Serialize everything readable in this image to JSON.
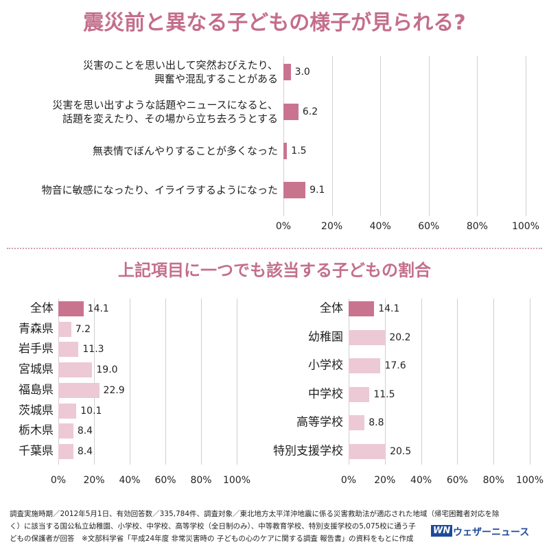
{
  "header": {
    "title": "震災前と異なる子どもの様子が見られる?"
  },
  "section_title": "上記項目に一つでも該当する子どもの割合",
  "footer": {
    "lines": [
      "調査実施時期／2012年5月1日、有効回答数／335,784件、調査対象／東北地方太平洋沖地震に係る災害救助法が適応された地域（帰宅困難者対応を除",
      "く）に該当する国公私立幼稚園、小学校、中学校、高等学校（全日制のみ）、中等教育学校、特別支援学校の5,075校に通う子",
      "どもの保護者が回答　※文部科学省「平成24年度 非常災害時の 子どもの心のケアに関する調査 報告書」の資料をもとに作成"
    ],
    "logo": "WN",
    "brand": "ウェザーニュース"
  },
  "chart_data": [
    {
      "type": "bar",
      "orientation": "horizontal",
      "categories": [
        "災害のことを思い出して突然おびえたり、\n興奮や混乱することがある",
        "災害を思い出すような話題やニュースになると、\n話題を変えたり、その場から立ち去ろうとする",
        "無表情でぼんやりすることが多くなった",
        "物音に敏感になったり、イライラするようになった"
      ],
      "values": [
        3.0,
        6.2,
        1.5,
        9.1
      ],
      "value_labels": [
        "3.0",
        "6.2",
        "1.5",
        "9.1"
      ],
      "colors": [
        "#c9748f",
        "#c9748f",
        "#c9748f",
        "#c9748f"
      ],
      "xlim": [
        0,
        100
      ],
      "xticks": [
        {
          "value": 0,
          "label": "0%"
        },
        {
          "value": 20,
          "label": "20%"
        },
        {
          "value": 40,
          "label": "40%"
        },
        {
          "value": 60,
          "label": "60%"
        },
        {
          "value": 80,
          "label": "80%"
        },
        {
          "value": 100,
          "label": "100%"
        }
      ],
      "grid": true
    },
    {
      "type": "bar",
      "orientation": "horizontal",
      "categories": [
        "全体",
        "青森県",
        "岩手県",
        "宮城県",
        "福島県",
        "茨城県",
        "栃木県",
        "千葉県"
      ],
      "values": [
        14.1,
        7.2,
        11.3,
        19.0,
        22.9,
        10.1,
        8.4,
        8.4
      ],
      "value_labels": [
        "14.1",
        "7.2",
        "11.3",
        "19.0",
        "22.9",
        "10.1",
        "8.4",
        "8.4"
      ],
      "colors": [
        "#c9748f",
        "#ecc9d5",
        "#ecc9d5",
        "#ecc9d5",
        "#ecc9d5",
        "#ecc9d5",
        "#ecc9d5",
        "#ecc9d5"
      ],
      "xlim": [
        0,
        100
      ],
      "xticks": [
        {
          "value": 0,
          "label": "0%"
        },
        {
          "value": 20,
          "label": "20%"
        },
        {
          "value": 40,
          "label": "40%"
        },
        {
          "value": 60,
          "label": "60%"
        },
        {
          "value": 80,
          "label": "80%"
        },
        {
          "value": 100,
          "label": "100%"
        }
      ],
      "grid": true
    },
    {
      "type": "bar",
      "orientation": "horizontal",
      "categories": [
        "全体",
        "幼稚園",
        "小学校",
        "中学校",
        "高等学校",
        "特別支援学校"
      ],
      "values": [
        14.1,
        20.2,
        17.6,
        11.5,
        8.8,
        20.5
      ],
      "value_labels": [
        "14.1",
        "20.2",
        "17.6",
        "11.5",
        "8.8",
        "20.5"
      ],
      "colors": [
        "#c9748f",
        "#ecc9d5",
        "#ecc9d5",
        "#ecc9d5",
        "#ecc9d5",
        "#ecc9d5"
      ],
      "xlim": [
        0,
        100
      ],
      "xticks": [
        {
          "value": 0,
          "label": "0%"
        },
        {
          "value": 20,
          "label": "20%"
        },
        {
          "value": 40,
          "label": "40%"
        },
        {
          "value": 60,
          "label": "60%"
        },
        {
          "value": 80,
          "label": "80%"
        },
        {
          "value": 100,
          "label": "100%"
        }
      ],
      "grid": true
    }
  ]
}
